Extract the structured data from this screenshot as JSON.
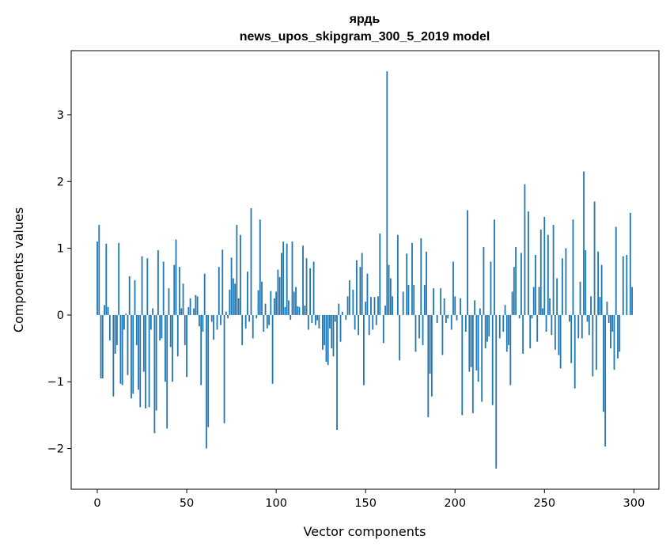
{
  "chart_data": {
    "type": "bar",
    "title": "ярдь",
    "subtitle": "news_upos_skipgram_300_5_2019 model",
    "xlabel": "Vector components",
    "ylabel": "Components values",
    "xlim": [
      -14.6,
      314
    ],
    "ylim": [
      -2.61,
      3.96
    ],
    "xticks": [
      0,
      50,
      100,
      150,
      200,
      250,
      300
    ],
    "xtick_labels": [
      "0",
      "50",
      "100",
      "150",
      "200",
      "250",
      "300"
    ],
    "yticks": [
      -2,
      -1,
      0,
      1,
      2,
      3
    ],
    "ytick_labels": [
      "−2",
      "−1",
      "0",
      "1",
      "2",
      "3"
    ],
    "grid": false,
    "bar_color": "#1f77b4",
    "values": [
      1.1,
      1.35,
      -0.95,
      -0.95,
      0.15,
      1.07,
      0.12,
      -0.38,
      0.0,
      -1.22,
      -0.58,
      -0.45,
      1.08,
      -1.03,
      -1.05,
      -0.22,
      0.02,
      -0.9,
      0.58,
      -1.25,
      -1.18,
      0.52,
      -0.45,
      -1.12,
      -1.38,
      0.88,
      -0.85,
      -1.4,
      0.85,
      -1.38,
      -0.22,
      0.1,
      -1.77,
      -1.43,
      0.97,
      -0.38,
      -0.35,
      0.8,
      -1.0,
      -1.7,
      0.4,
      -0.48,
      -1.0,
      0.75,
      1.13,
      -0.62,
      0.72,
      0.1,
      0.47,
      -0.45,
      -0.93,
      0.12,
      0.25,
      0.0,
      0.1,
      0.3,
      0.28,
      -0.17,
      -1.05,
      -0.25,
      0.62,
      -2.0,
      -1.68,
      0.0,
      -0.1,
      -0.37,
      0.0,
      -0.22,
      0.72,
      -0.15,
      0.98,
      -1.62,
      0.05,
      -0.05,
      0.38,
      0.86,
      0.55,
      0.47,
      1.35,
      0.25,
      1.2,
      -0.45,
      0.0,
      -0.2,
      0.65,
      -0.1,
      1.6,
      -0.35,
      0.0,
      -0.05,
      0.37,
      1.43,
      0.5,
      -0.25,
      0.17,
      -0.2,
      -0.15,
      0.36,
      -1.03,
      0.25,
      0.35,
      0.68,
      0.57,
      0.93,
      1.1,
      0.12,
      1.07,
      0.22,
      -0.07,
      1.1,
      0.35,
      0.42,
      0.13,
      0.12,
      0.0,
      1.04,
      0.14,
      0.85,
      -0.22,
      0.7,
      -0.12,
      0.8,
      -0.15,
      -0.08,
      -0.2,
      0.0,
      -0.52,
      -0.45,
      -0.7,
      -0.75,
      -0.2,
      -0.5,
      -0.62,
      -0.1,
      -1.72,
      0.17,
      -0.4,
      0.05,
      0.0,
      -0.07,
      0.28,
      0.52,
      0.0,
      0.38,
      -0.22,
      0.82,
      -0.3,
      0.72,
      0.93,
      -1.05,
      0.2,
      0.62,
      -0.3,
      0.27,
      -0.22,
      0.27,
      -0.15,
      0.28,
      1.22,
      0.0,
      -0.42,
      0.14,
      3.65,
      0.75,
      0.55,
      0.28,
      0.0,
      0.0,
      1.2,
      -0.68,
      0.0,
      0.35,
      0.0,
      0.92,
      0.45,
      0.0,
      1.08,
      0.45,
      -0.55,
      0.0,
      -0.35,
      1.15,
      -0.45,
      0.45,
      0.95,
      -1.53,
      -0.88,
      -1.22,
      0.4,
      0.0,
      -0.12,
      0.0,
      0.4,
      -0.6,
      0.25,
      -0.12,
      -0.05,
      0.0,
      -0.22,
      0.8,
      0.28,
      -0.08,
      0.0,
      0.25,
      -1.5,
      0.0,
      -0.25,
      1.57,
      -0.85,
      -0.78,
      -1.47,
      0.22,
      -0.83,
      -1.0,
      0.1,
      -1.3,
      1.02,
      -0.5,
      -0.4,
      -0.32,
      0.8,
      -1.35,
      1.43,
      -2.3,
      0.0,
      -0.35,
      0.0,
      -0.25,
      0.15,
      -0.55,
      -0.45,
      -1.05,
      0.35,
      0.72,
      1.02,
      0.0,
      -0.05,
      0.93,
      -0.58,
      1.96,
      0.0,
      1.55,
      -0.5,
      -0.05,
      0.42,
      0.9,
      -0.4,
      0.42,
      1.28,
      0.1,
      1.47,
      -0.25,
      1.2,
      0.25,
      -0.3,
      1.35,
      -0.52,
      0.55,
      -0.6,
      -0.8,
      0.85,
      0.0,
      1.0,
      0.0,
      -0.1,
      -0.72,
      1.43,
      -1.1,
      0.0,
      -0.35,
      0.5,
      -0.35,
      2.15,
      0.97,
      -0.1,
      -0.3,
      0.28,
      -0.92,
      1.7,
      -0.82,
      0.95,
      0.27,
      0.75,
      -1.45,
      -1.97,
      0.2,
      -0.12,
      -0.5,
      -0.25,
      -0.82,
      1.32,
      -0.65,
      -0.55,
      0.0,
      0.88,
      0.0,
      0.9,
      0.0,
      1.53,
      0.42
    ]
  }
}
